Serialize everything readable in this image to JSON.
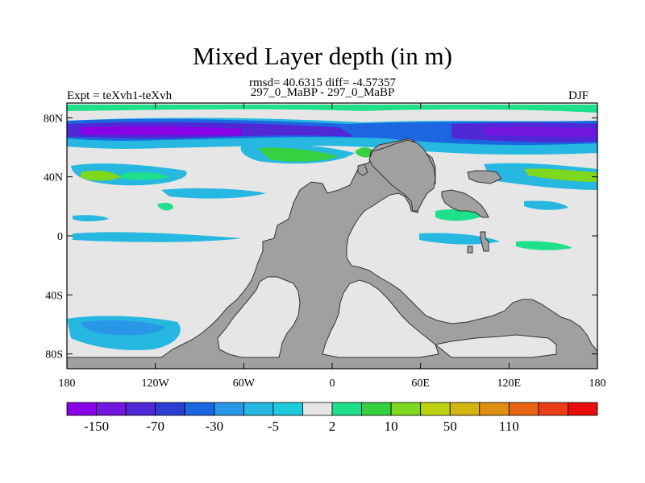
{
  "title": "Mixed Layer depth (in m)",
  "stats_line": "rmsd= 40.6315 diff= -4.57357",
  "comparison": "297_0_MaBP - 297_0_MaBP",
  "experiment": "Expt = teXvh1-teXvh",
  "season": "DJF",
  "map": {
    "projection": "cylindrical-equidistant",
    "lon_range": [
      -180,
      180
    ],
    "lat_range": [
      -90,
      90
    ],
    "land_color": "#a0a0a0",
    "ocean_zero_color": "#e6e6e6",
    "x_ticks": [
      {
        "lon": -180,
        "label": "180"
      },
      {
        "lon": -120,
        "label": "120W"
      },
      {
        "lon": -60,
        "label": "60W"
      },
      {
        "lon": 0,
        "label": "0"
      },
      {
        "lon": 60,
        "label": "60E"
      },
      {
        "lon": 120,
        "label": "120E"
      },
      {
        "lon": 180,
        "label": "180"
      }
    ],
    "y_ticks": [
      {
        "lat": 80,
        "label": "80N"
      },
      {
        "lat": 40,
        "label": "40N"
      },
      {
        "lat": 0,
        "label": "0"
      },
      {
        "lat": -40,
        "label": "40S"
      },
      {
        "lat": -80,
        "label": "80S"
      }
    ]
  },
  "colorbar": {
    "colors": [
      "#8a00e6",
      "#7216e0",
      "#5028d6",
      "#2c3ed2",
      "#1c66e2",
      "#2a96e8",
      "#26b8e0",
      "#1ecbdc",
      "#e6e6e6",
      "#1ee08a",
      "#36d040",
      "#7ed81e",
      "#bcd410",
      "#d4b410",
      "#e09010",
      "#e86414",
      "#ec3c18",
      "#e80c0c"
    ],
    "labels": [
      {
        "after_box": 1,
        "text": "-150"
      },
      {
        "after_box": 3,
        "text": "-70"
      },
      {
        "after_box": 5,
        "text": "-30"
      },
      {
        "after_box": 7,
        "text": "-5"
      },
      {
        "after_box": 9,
        "text": "2"
      },
      {
        "after_box": 11,
        "text": "10"
      },
      {
        "after_box": 13,
        "text": "50"
      },
      {
        "after_box": 15,
        "text": "110"
      }
    ]
  }
}
